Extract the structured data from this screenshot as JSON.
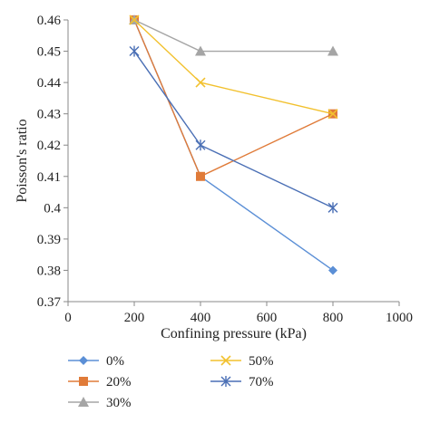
{
  "chart_data": {
    "type": "line",
    "xlabel": "Confining pressure (kPa)",
    "ylabel": "Poisson's ratio",
    "xlim": [
      0,
      1000
    ],
    "ylim": [
      0.37,
      0.46
    ],
    "xticks": [
      "0",
      "200",
      "400",
      "600",
      "800",
      "1000"
    ],
    "yticks": [
      "0.37",
      "0.38",
      "0.39",
      "0.4",
      "0.41",
      "0.42",
      "0.43",
      "0.44",
      "0.45",
      "0.46"
    ],
    "grid": false,
    "legend_position": "bottom",
    "x": [
      200,
      400,
      800
    ],
    "series": [
      {
        "name": "0%",
        "marker": "diamond",
        "color": "#5b8fd6",
        "values": [
          0.46,
          0.41,
          0.38
        ]
      },
      {
        "name": "20%",
        "marker": "square",
        "color": "#e07b39",
        "values": [
          0.46,
          0.41,
          0.43
        ]
      },
      {
        "name": "30%",
        "marker": "triangle",
        "color": "#a5a5a5",
        "values": [
          0.46,
          0.45,
          0.45
        ]
      },
      {
        "name": "50%",
        "marker": "x",
        "color": "#f2c12e",
        "values": [
          0.46,
          0.44,
          0.43
        ]
      },
      {
        "name": "70%",
        "marker": "star",
        "color": "#4a6fb5",
        "values": [
          0.45,
          0.42,
          0.4
        ]
      }
    ]
  }
}
